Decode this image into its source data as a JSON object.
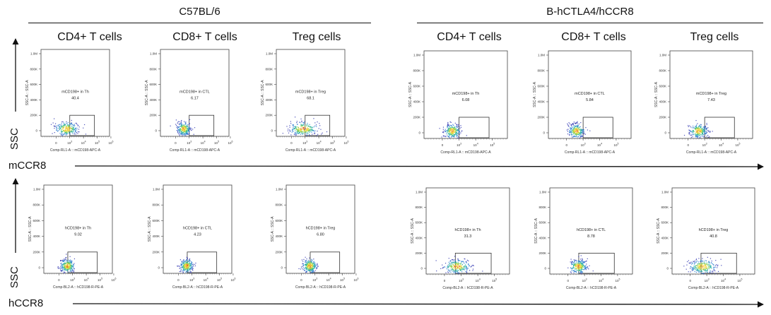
{
  "chart_data": {
    "type": "scatter",
    "subtype": "flow-cytometry-density-plot",
    "groups": [
      {
        "name": "C57BL/6",
        "columns": [
          "CD4+ T cells",
          "CD8+ T cells",
          "Treg cells"
        ]
      },
      {
        "name": "B-hCTLA4/hCCR8",
        "columns": [
          "CD4+ T cells",
          "CD8+ T cells",
          "Treg cells"
        ]
      }
    ],
    "row_axis_labels": {
      "y": "SSC",
      "x_row1": "mCCR8",
      "x_row2": "hCCR8"
    },
    "y_axis": {
      "label": "SSC-A :: SSC-A",
      "ticks": [
        "0",
        "200K",
        "400K",
        "600K",
        "800K",
        "1.0M"
      ],
      "range": [
        0,
        1000000
      ]
    },
    "x_ticks": [
      "0",
      "10^3",
      "10^4",
      "10^5",
      "10^6"
    ],
    "rows": [
      {
        "marker": "mCCR8",
        "x_axis_label": "Comp-RL1-A :: mCD198-APC-A",
        "plots": [
          {
            "strain": "C57BL/6",
            "population": "CD4+ T cells",
            "gate_name": "mCD198+ in Th",
            "percent": "40.4",
            "spread": 1.6
          },
          {
            "strain": "C57BL/6",
            "population": "CD8+ T cells",
            "gate_name": "mCD198+ in CTL",
            "percent": "6.17",
            "spread": 0.9
          },
          {
            "strain": "C57BL/6",
            "population": "Treg cells",
            "gate_name": "mCD198+ in Treg",
            "percent": "68.1",
            "spread": 2.0
          },
          {
            "strain": "B-hCTLA4/hCCR8",
            "population": "CD4+ T cells",
            "gate_name": "mCD198+ in Th",
            "percent": "6.08",
            "spread": 0.9
          },
          {
            "strain": "B-hCTLA4/hCCR8",
            "population": "CD8+ T cells",
            "gate_name": "mCD198+ in CTL",
            "percent": "5.84",
            "spread": 0.9
          },
          {
            "strain": "B-hCTLA4/hCCR8",
            "population": "Treg cells",
            "gate_name": "mCD198+ in Treg",
            "percent": "7.43",
            "spread": 1.0
          }
        ]
      },
      {
        "marker": "hCCR8",
        "x_axis_label": "Comp-BL2-A :: hCD198-R-PE-A",
        "plots": [
          {
            "strain": "C57BL/6",
            "population": "CD4+ T cells",
            "gate_name": "hCD198+ in Th",
            "percent": "9.02",
            "spread": 1.0
          },
          {
            "strain": "C57BL/6",
            "population": "CD8+ T cells",
            "gate_name": "hCD198+ in CTL",
            "percent": "4.23",
            "spread": 0.9
          },
          {
            "strain": "C57BL/6",
            "population": "Treg cells",
            "gate_name": "hCD198+ in Treg",
            "percent": "6.80",
            "spread": 1.0
          },
          {
            "strain": "B-hCTLA4/hCCR8",
            "population": "CD4+ T cells",
            "gate_name": "hCD198+ in Th",
            "percent": "31.3",
            "spread": 1.5
          },
          {
            "strain": "B-hCTLA4/hCCR8",
            "population": "CD8+ T cells",
            "gate_name": "hCD198+ in CTL",
            "percent": "8.78",
            "spread": 1.0
          },
          {
            "strain": "B-hCTLA4/hCCR8",
            "population": "Treg cells",
            "gate_name": "hCD198+ in Treg",
            "percent": "40.8",
            "spread": 1.5
          }
        ]
      }
    ],
    "density_colors": [
      "#3a3fb5",
      "#2f7fd0",
      "#2bb3a0",
      "#8fd14f",
      "#f2d43a",
      "#e5452e"
    ]
  }
}
